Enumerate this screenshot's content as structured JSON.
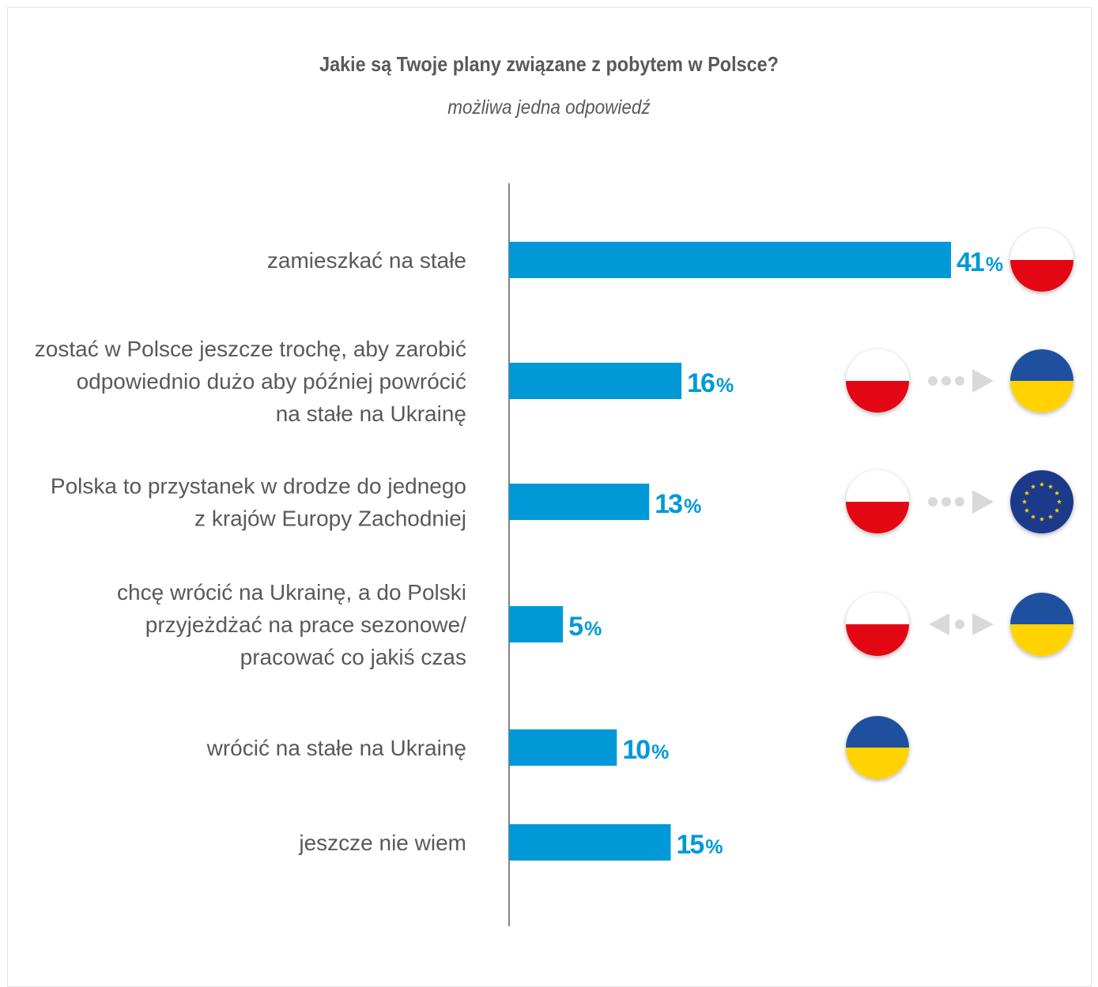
{
  "chart_data": {
    "type": "bar",
    "orientation": "horizontal",
    "title": "Jakie są Twoje plany związane z pobytem w Polsce?",
    "subtitle": "możliwa jedna odpowiedź",
    "categories": [
      [
        "zamieszkać na stałe"
      ],
      [
        "zostać w Polsce jeszcze trochę, aby zarobić",
        "odpowiednio dużo aby później powrócić",
        "na stałe na Ukrainę"
      ],
      [
        "Polska to przystanek w drodze do jednego",
        "z krajów Europy Zachodniej"
      ],
      [
        "chcę wrócić na Ukrainę, a do Polski",
        "przyjeżdżać na prace sezonowe/",
        "pracować co jakiś czas"
      ],
      [
        "wrócić na stałe na Ukrainę"
      ],
      [
        "jeszcze nie wiem"
      ]
    ],
    "values": [
      41,
      16,
      13,
      5,
      10,
      15
    ],
    "value_labels": [
      "41",
      "16",
      "13",
      "5",
      "10",
      "15"
    ],
    "unit": "%",
    "xlim": [
      0,
      41
    ],
    "grid": false,
    "bar_color": "#0099d8",
    "label_color": "#0099d8",
    "icons": [
      {
        "flags": [
          "poland-flag-icon"
        ],
        "connector": "none"
      },
      {
        "flags": [
          "poland-flag-icon",
          "ukraine-flag-icon"
        ],
        "connector": "dots-arrow-right"
      },
      {
        "flags": [
          "poland-flag-icon",
          "eu-flag-icon"
        ],
        "connector": "dots-arrow-right"
      },
      {
        "flags": [
          "poland-flag-icon",
          "ukraine-flag-icon"
        ],
        "connector": "arrows-both-ways"
      },
      {
        "flags": [
          "ukraine-flag-icon"
        ],
        "connector": "none"
      },
      {
        "flags": [],
        "connector": "none"
      }
    ]
  },
  "colors": {
    "poland_red": "#e30613",
    "ukraine_blue": "#1f4f9f",
    "ukraine_yellow": "#ffd200",
    "eu_blue": "#1b3a8a",
    "eu_star": "#ffcc00",
    "connector_grey": "#d9d9d9",
    "axis": "#5a5a5a",
    "category_text": "#595959"
  }
}
